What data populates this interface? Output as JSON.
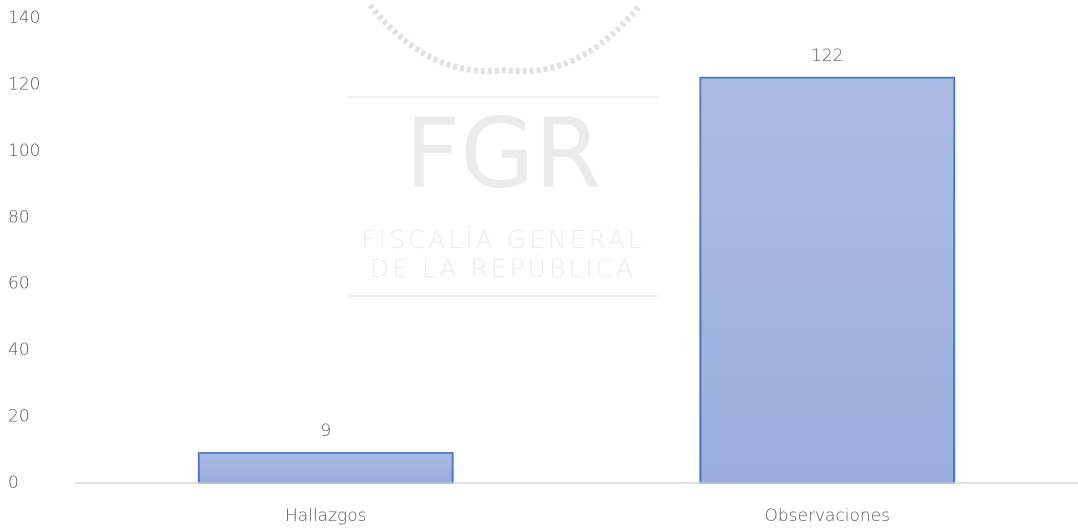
{
  "chart_data": {
    "type": "bar",
    "categories": [
      "Hallazgos",
      "Observaciones"
    ],
    "values": [
      9,
      122
    ],
    "color": "#9aaddd",
    "edge_color": "#4472c4",
    "ylim": [
      0,
      140
    ],
    "yticks": [
      0,
      20,
      40,
      60,
      80,
      100,
      120,
      140
    ],
    "grid": false,
    "watermark": [
      "FGR",
      "FISCALÍA GENERAL",
      "DE LA REPÚBLICA"
    ]
  }
}
